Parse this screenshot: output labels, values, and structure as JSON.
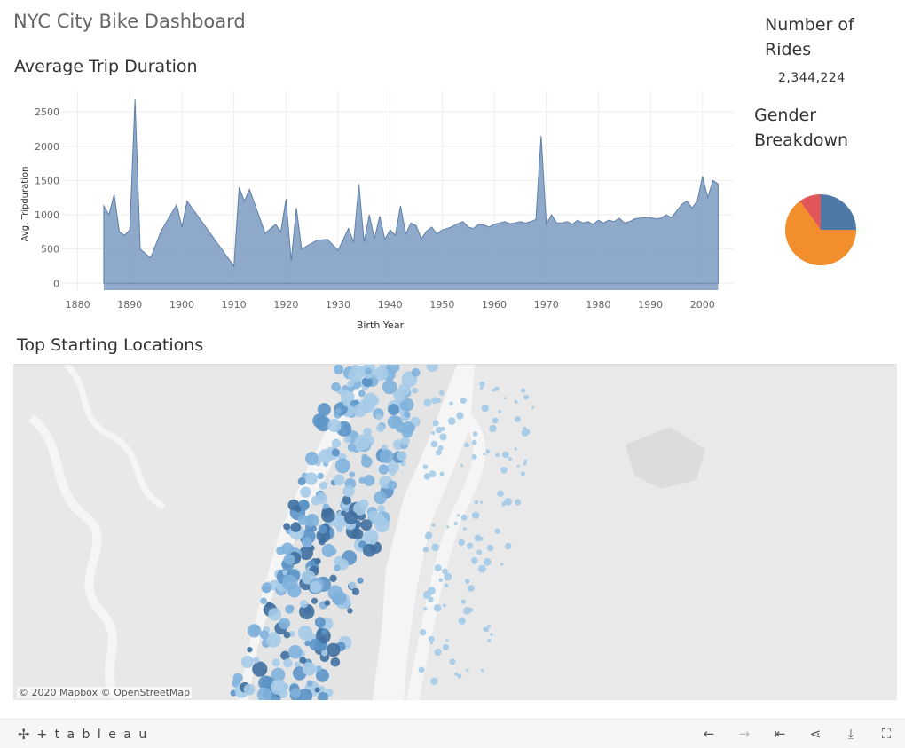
{
  "dashboard": {
    "title": "NYC City Bike Dashboard"
  },
  "kpi": {
    "title": "Number of Rides",
    "value": "2,344,224"
  },
  "gender": {
    "title": "Gender Breakdown",
    "colors": [
      "#4e79a7",
      "#f28e2b",
      "#e15759"
    ]
  },
  "map": {
    "title": "Top Starting Locations",
    "attribution": "© 2020 Mapbox © OpenStreetMap",
    "dot_colors": [
      "#a6cbe8",
      "#7fb1dc",
      "#5b93c6",
      "#3f6fa0"
    ]
  },
  "footer": {
    "brand": "+ t a b l e a u",
    "buttons": [
      "undo-icon",
      "redo-icon",
      "revert-icon",
      "share-icon",
      "download-icon",
      "fullscreen-icon"
    ]
  },
  "chart_data": [
    {
      "type": "area",
      "title": "Average Trip Duration",
      "xlabel": "Birth Year",
      "ylabel": "Avg. Tripduration",
      "xticks": [
        1880,
        1890,
        1900,
        1910,
        1920,
        1930,
        1940,
        1950,
        1960,
        1970,
        1980,
        1990,
        2000
      ],
      "yticks": [
        0,
        500,
        1000,
        1500,
        2000,
        2500
      ],
      "xlim": [
        1877,
        2006
      ],
      "ylim": [
        -100,
        2800
      ],
      "grid": true,
      "color": "#7a9ac0",
      "x": [
        1885,
        1886,
        1887,
        1888,
        1889,
        1890,
        1891,
        1892,
        1894,
        1896,
        1899,
        1900,
        1901,
        1910,
        1911,
        1912,
        1913,
        1916,
        1918,
        1919,
        1920,
        1921,
        1922,
        1923,
        1926,
        1928,
        1930,
        1932,
        1933,
        1934,
        1935,
        1936,
        1937,
        1938,
        1939,
        1940,
        1941,
        1942,
        1943,
        1944,
        1945,
        1946,
        1947,
        1948,
        1949,
        1950,
        1951,
        1952,
        1953,
        1954,
        1955,
        1956,
        1957,
        1958,
        1959,
        1960,
        1961,
        1962,
        1963,
        1964,
        1965,
        1966,
        1967,
        1968,
        1969,
        1970,
        1971,
        1972,
        1973,
        1974,
        1975,
        1976,
        1977,
        1978,
        1979,
        1980,
        1981,
        1982,
        1983,
        1984,
        1985,
        1986,
        1987,
        1988,
        1989,
        1990,
        1991,
        1992,
        1993,
        1994,
        1995,
        1996,
        1997,
        1998,
        1999,
        2000,
        2001,
        2002,
        2003
      ],
      "values": [
        1130,
        1000,
        1300,
        750,
        700,
        780,
        2680,
        500,
        370,
        760,
        1150,
        820,
        1200,
        250,
        1400,
        1200,
        1370,
        730,
        860,
        750,
        1230,
        330,
        1100,
        500,
        630,
        640,
        480,
        800,
        600,
        1450,
        600,
        1000,
        650,
        980,
        640,
        780,
        700,
        1130,
        720,
        880,
        840,
        650,
        760,
        820,
        720,
        780,
        800,
        830,
        870,
        900,
        820,
        800,
        860,
        850,
        820,
        860,
        880,
        900,
        870,
        880,
        900,
        880,
        900,
        930,
        2150,
        860,
        1000,
        880,
        880,
        900,
        860,
        920,
        880,
        900,
        860,
        920,
        880,
        920,
        900,
        950,
        880,
        900,
        940,
        950,
        960,
        960,
        940,
        950,
        1000,
        960,
        1050,
        1150,
        1200,
        1100,
        1200,
        1560,
        1250,
        1500,
        1450
      ]
    },
    {
      "type": "pie",
      "title": "Gender Breakdown",
      "values": [
        0.25,
        0.65,
        0.1
      ],
      "colors": [
        "#4e79a7",
        "#f28e2b",
        "#e15759"
      ]
    }
  ]
}
